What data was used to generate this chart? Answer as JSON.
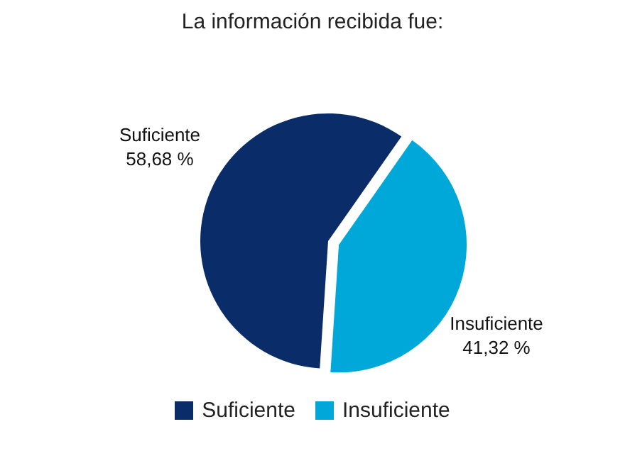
{
  "chart_data": {
    "type": "pie",
    "title": "La información recibida fue:",
    "categories": [
      "Suficiente",
      "Insuficiente"
    ],
    "values": [
      58.68,
      41.32
    ],
    "value_labels": [
      "58,68 %",
      "41,32 %"
    ],
    "colors": [
      "#0a2d69",
      "#00a8d9"
    ],
    "legend": "bottom"
  }
}
